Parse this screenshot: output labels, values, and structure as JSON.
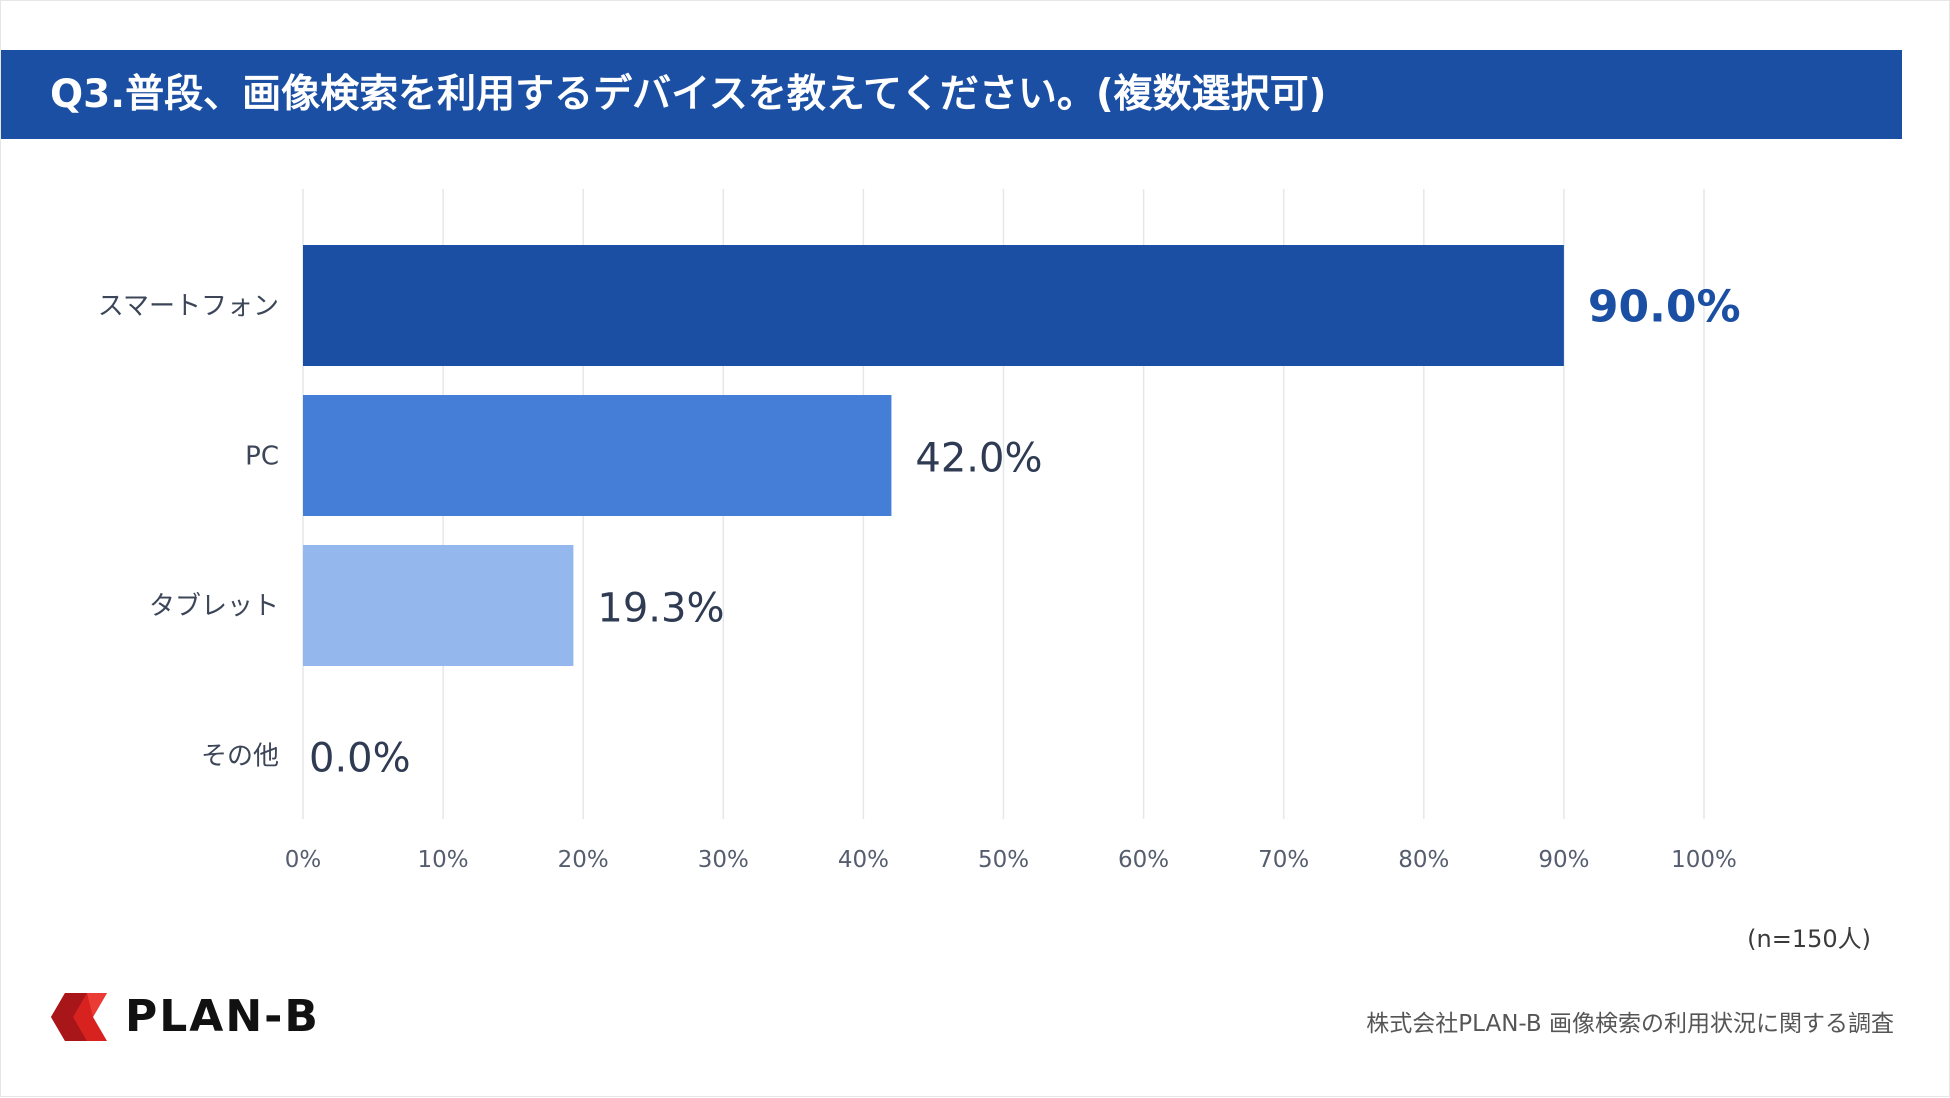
{
  "colors": {
    "title_bg": "#1b4fa3",
    "bars": [
      "#1b4fa3",
      "#457ed6",
      "#94b8ee",
      "#c9dbf6"
    ],
    "value_primary": "#1b4fa3",
    "value_default": "#2e3b52",
    "grid": "#e4e7ec",
    "label": "#3c4658"
  },
  "header": {
    "title": "Q3.普段、画像検索を利用するデバイスを教えてください。(複数選択可)"
  },
  "chart_data": {
    "type": "bar",
    "orientation": "horizontal",
    "title": "Q3.普段、画像検索を利用するデバイスを教えてください。(複数選択可)",
    "categories": [
      "スマートフォン",
      "PC",
      "タブレット",
      "その他"
    ],
    "values": [
      90.0,
      42.0,
      19.3,
      0.0
    ],
    "value_labels": [
      "90.0%",
      "42.0%",
      "19.3%",
      "0.0%"
    ],
    "xlim": [
      0,
      100
    ],
    "xticks": [
      0,
      10,
      20,
      30,
      40,
      50,
      60,
      70,
      80,
      90,
      100
    ],
    "xtick_labels": [
      "0%",
      "10%",
      "20%",
      "30%",
      "40%",
      "50%",
      "60%",
      "70%",
      "80%",
      "90%",
      "100%"
    ],
    "grid": true
  },
  "note": "(n=150人)",
  "footer": {
    "logo_text": "PLAN-B",
    "source": "株式会社PLAN-B 画像検索の利用状況に関する調査"
  }
}
